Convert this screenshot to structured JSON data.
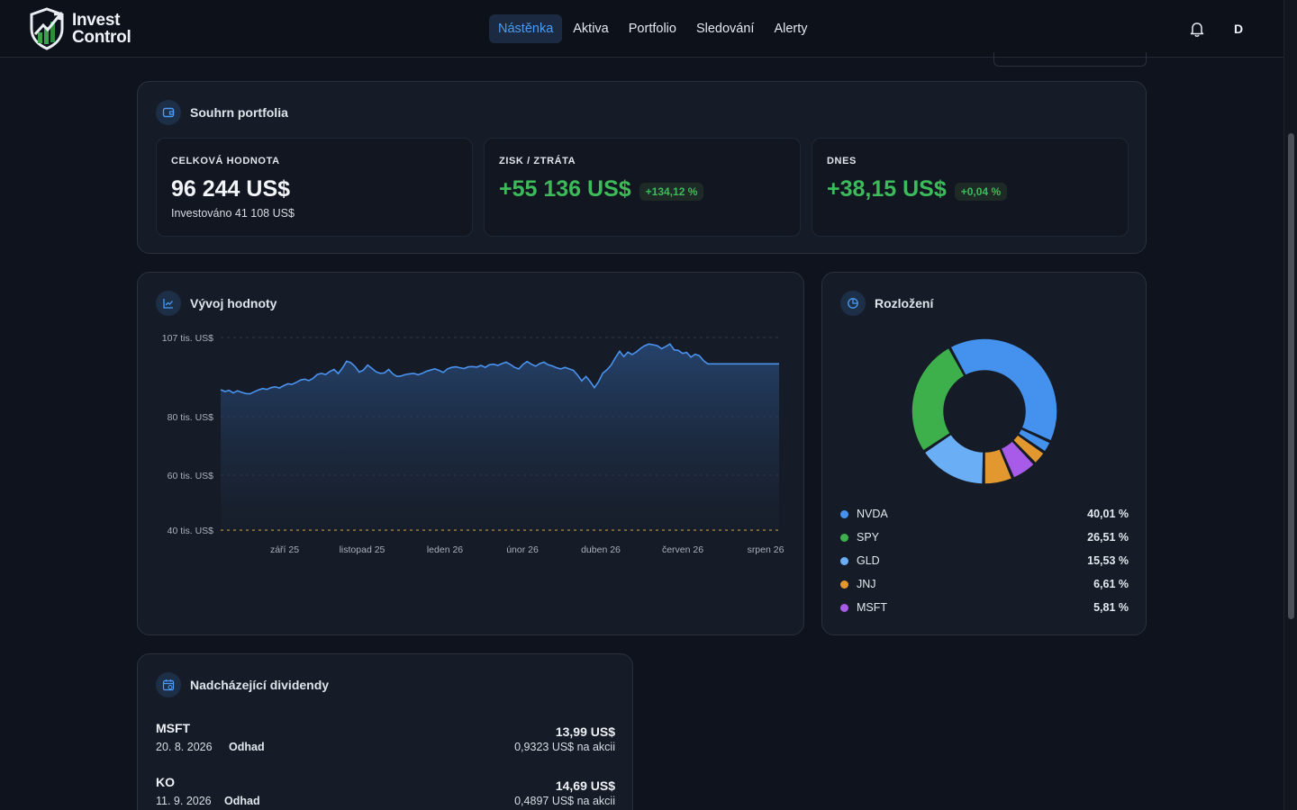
{
  "brand": {
    "line1": "Invest",
    "line2": "Control"
  },
  "nav": [
    {
      "label": "Nástěnka",
      "active": true
    },
    {
      "label": "Aktiva",
      "active": false
    },
    {
      "label": "Portfolio",
      "active": false
    },
    {
      "label": "Sledování",
      "active": false
    },
    {
      "label": "Alerty",
      "active": false
    }
  ],
  "user": {
    "initial": "D"
  },
  "summary": {
    "title": "Souhrn portfolia",
    "total": {
      "label": "CELKOVÁ HODNOTA",
      "value": "96 244 US$",
      "invested": "Investováno 41 108 US$"
    },
    "pl": {
      "label": "ZISK / ZTRÁTA",
      "value": "+55 136 US$",
      "pct": "+134,12 %"
    },
    "today": {
      "label": "DNES",
      "value": "+38,15 US$",
      "pct": "+0,04 %"
    }
  },
  "value_chart": {
    "title": "Vývoj hodnoty",
    "chart_data": {
      "type": "area",
      "y_ticks": [
        {
          "value": 107000,
          "label": "107 tis. US$"
        },
        {
          "value": 80000,
          "label": "80 tis. US$"
        },
        {
          "value": 60000,
          "label": "60 tis. US$"
        },
        {
          "value": 40000,
          "label": "40 tis. US$"
        }
      ],
      "x_ticks": [
        "září 25",
        "listopad 25",
        "leden 26",
        "únor 26",
        "duben 26",
        "červen 26",
        "srpen 26"
      ],
      "ylim": [
        40000,
        107000
      ],
      "series": [
        {
          "values": [
            89200,
            88600,
            89000,
            88100,
            88800,
            88300,
            87900,
            87800,
            88500,
            89100,
            89600,
            89300,
            89900,
            90200,
            89800,
            90600,
            91200,
            91000,
            91700,
            92500,
            92800,
            92300,
            93100,
            94400,
            94800,
            94400,
            95400,
            96100,
            94700,
            96600,
            98900,
            98400,
            97100,
            95200,
            95900,
            97600,
            96500,
            95300,
            94800,
            94900,
            96100,
            94600,
            93700,
            93900,
            94400,
            94600,
            94800,
            94300,
            94800,
            95500,
            95900,
            96300,
            95800,
            95100,
            96300,
            96800,
            97000,
            96700,
            96400,
            97000,
            97100,
            96900,
            97500,
            96800,
            97700,
            97900,
            97500,
            98100,
            98600,
            97800,
            96800,
            96300,
            97800,
            98800,
            97900,
            97200,
            98100,
            98600,
            97700,
            97300,
            96700,
            96300,
            96800,
            96300,
            95800,
            94200,
            92200,
            93700,
            92000,
            89900,
            91900,
            94800,
            96000,
            97600,
            100100,
            102300,
            100500,
            102000,
            101200,
            102100,
            103300,
            104200,
            104800,
            104500,
            104200,
            103200,
            103900,
            104800,
            102800,
            102600,
            101600,
            101900,
            100300,
            101300,
            100800,
            99100,
            98000,
            98000,
            98000,
            98000,
            98000,
            98000,
            98000,
            98000,
            98000,
            98000,
            98000,
            98000,
            98000,
            98000,
            98000,
            98000,
            98000,
            98000
          ]
        }
      ],
      "baseline": 40000,
      "colors": {
        "line": "#4a92ee",
        "baseline": "#c59a3a"
      }
    }
  },
  "allocation": {
    "title": "Rozložení",
    "chart_data": {
      "type": "pie",
      "donut": true,
      "segments": [
        {
          "name": "NVDA",
          "value": 40.01,
          "label": "40,01 %",
          "color": "#4592ee"
        },
        {
          "name": "",
          "value": 2.72,
          "label": "",
          "color": "#4592ee"
        },
        {
          "name": "",
          "value": 3.26,
          "label": "",
          "color": "#e2982e"
        },
        {
          "name": "MSFT",
          "value": 5.81,
          "label": "5,81 %",
          "color": "#a85ae8"
        },
        {
          "name": "JNJ",
          "value": 6.61,
          "label": "6,61 %",
          "color": "#e2982e"
        },
        {
          "name": "GLD",
          "value": 15.53,
          "label": "15,53 %",
          "color": "#6aaef5"
        },
        {
          "name": "SPY",
          "value": 26.51,
          "label": "26,51 %",
          "color": "#3db04c"
        }
      ],
      "legend": [
        {
          "name": "NVDA",
          "label": "40,01 %",
          "color": "#4592ee"
        },
        {
          "name": "SPY",
          "label": "26,51 %",
          "color": "#3db04c"
        },
        {
          "name": "GLD",
          "label": "15,53 %",
          "color": "#6aaef5"
        },
        {
          "name": "JNJ",
          "label": "6,61 %",
          "color": "#e2982e"
        },
        {
          "name": "MSFT",
          "label": "5,81 %",
          "color": "#a85ae8"
        }
      ]
    }
  },
  "dividends": {
    "title": "Nadcházející dividendy",
    "items": [
      {
        "ticker": "MSFT",
        "date": "20. 8. 2026",
        "badge": "Odhad",
        "amount": "13,99 US$",
        "per_share": "0,9323 US$ na akcii"
      },
      {
        "ticker": "KO",
        "date": "11. 9. 2026",
        "badge": "Odhad",
        "amount": "14,69 US$",
        "per_share": "0,4897 US$ na akcii"
      }
    ]
  },
  "colors": {
    "accent": "#4a9bf5",
    "positive": "#3dbb5a",
    "bg": "#0e131d",
    "card": "#161c27"
  },
  "icons": {
    "logo": "shield-chart-logo",
    "bell": "bell-icon",
    "summary": "wallet-icon",
    "value": "line-chart-icon",
    "allocation": "pie-chart-icon",
    "dividends": "calendar-icon"
  }
}
